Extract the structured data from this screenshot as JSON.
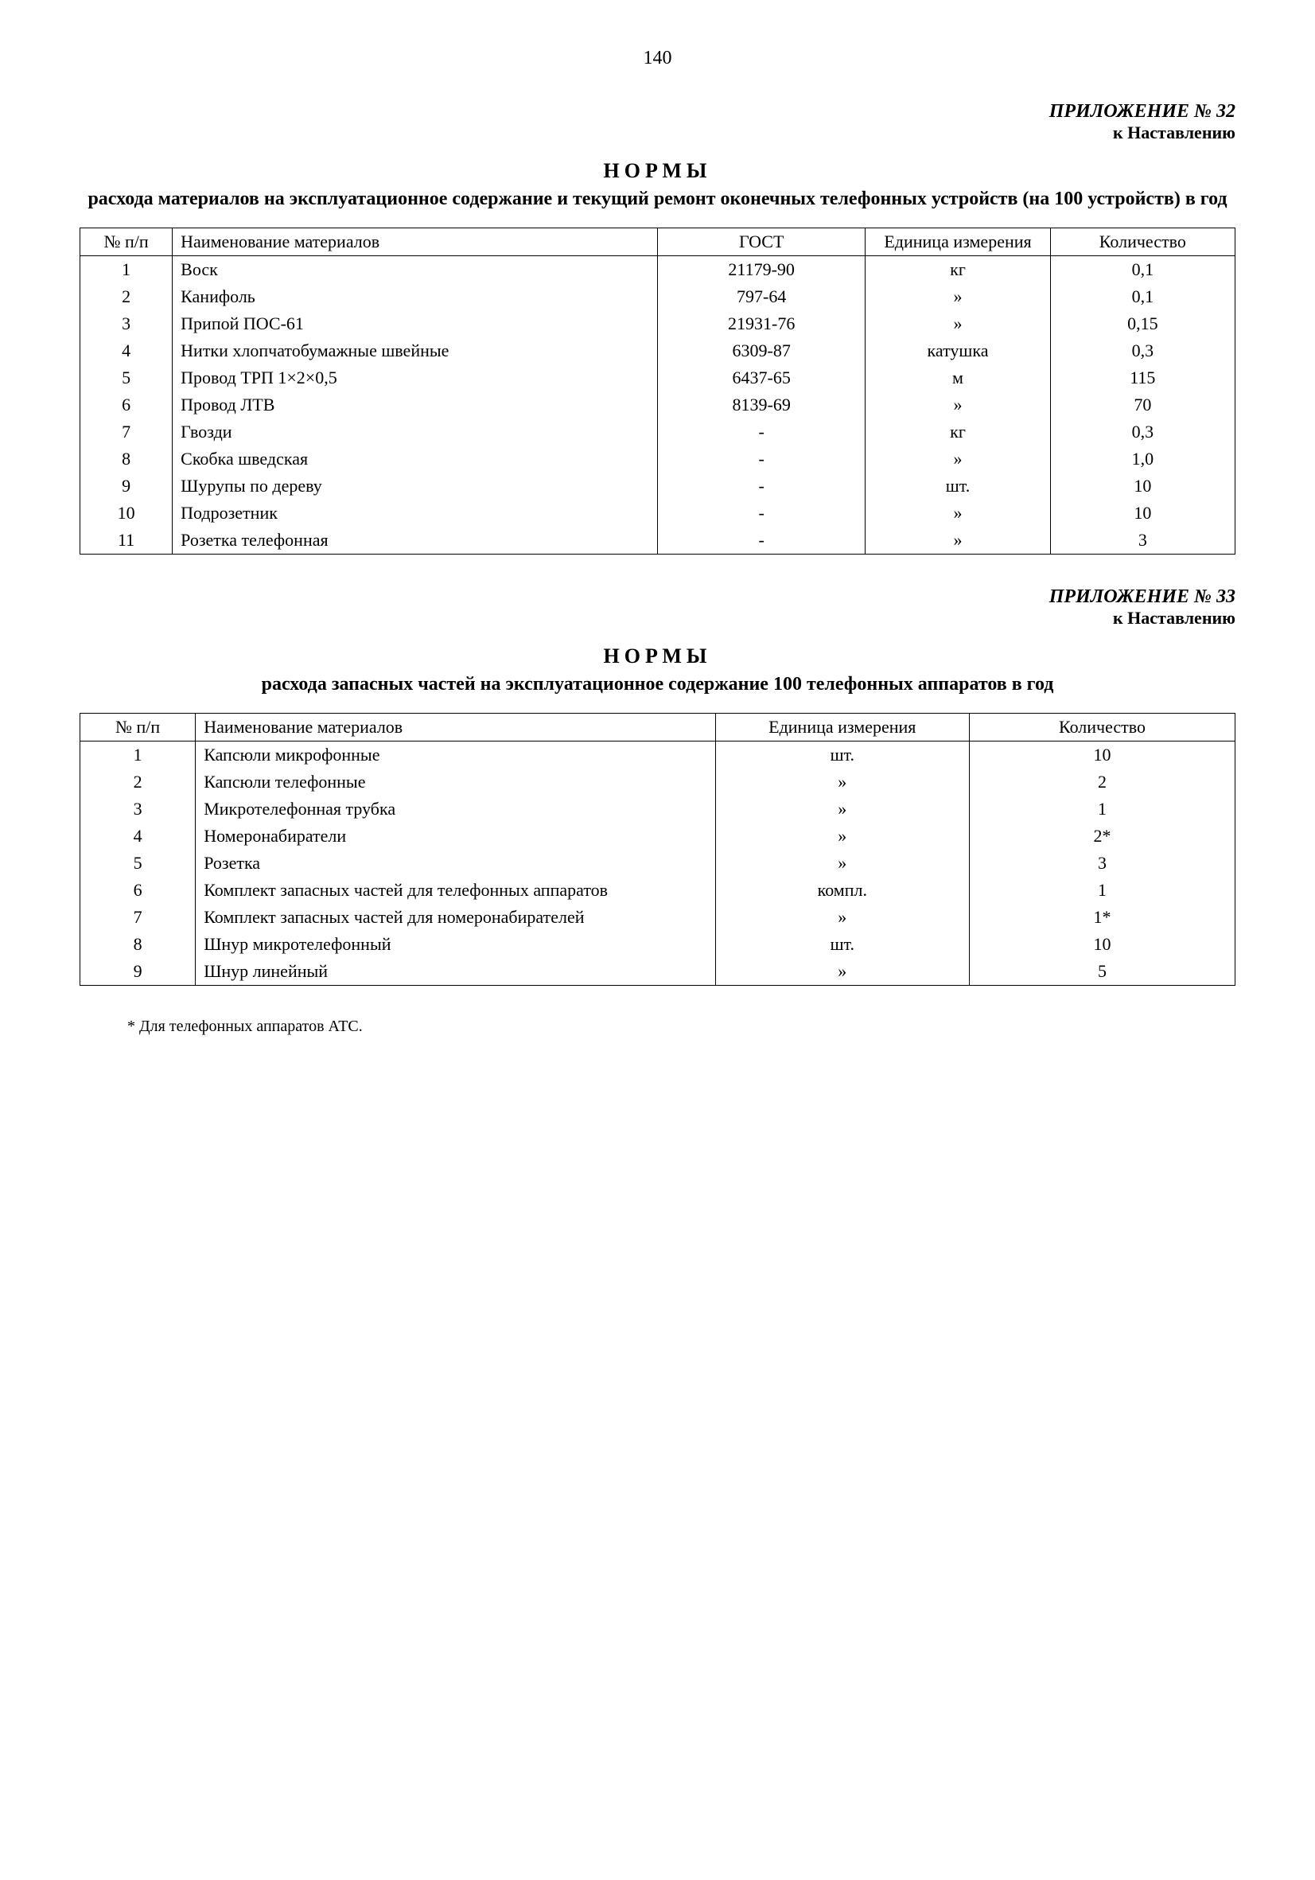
{
  "page_number": "140",
  "appendix32": {
    "title": "ПРИЛОЖЕНИЕ № 32",
    "subtitle": "к Наставлению",
    "heading": "НОРМЫ",
    "subheading": "расхода материалов на эксплуатационное содержание и текущий ремонт оконечных телефонных устройств (на 100 устройств) в год",
    "columns": [
      "№ п/п",
      "Наименование материалов",
      "ГОСТ",
      "Единица измерения",
      "Количество"
    ],
    "rows": [
      {
        "num": "1",
        "name": "Воск",
        "gost": "21179-90",
        "unit": "кг",
        "qty": "0,1"
      },
      {
        "num": "2",
        "name": "Канифоль",
        "gost": "797-64",
        "unit": "»",
        "qty": "0,1"
      },
      {
        "num": "3",
        "name": "Припой ПОС-61",
        "gost": "21931-76",
        "unit": "»",
        "qty": "0,15"
      },
      {
        "num": "4",
        "name": "Нитки хлопчатобумажные швейные",
        "gost": "6309-87",
        "unit": "катушка",
        "qty": "0,3"
      },
      {
        "num": "5",
        "name": "Провод ТРП 1×2×0,5",
        "gost": "6437-65",
        "unit": "м",
        "qty": "115"
      },
      {
        "num": "6",
        "name": "Провод ЛТВ",
        "gost": "8139-69",
        "unit": "»",
        "qty": "70"
      },
      {
        "num": "7",
        "name": "Гвозди",
        "gost": "-",
        "unit": "кг",
        "qty": "0,3"
      },
      {
        "num": "8",
        "name": "Скобка шведская",
        "gost": "-",
        "unit": "»",
        "qty": "1,0"
      },
      {
        "num": "9",
        "name": "Шурупы по дереву",
        "gost": "-",
        "unit": "шт.",
        "qty": "10"
      },
      {
        "num": "10",
        "name": "Подрозетник",
        "gost": "-",
        "unit": "»",
        "qty": "10"
      },
      {
        "num": "11",
        "name": "Розетка телефонная",
        "gost": "-",
        "unit": "»",
        "qty": "3"
      }
    ]
  },
  "appendix33": {
    "title": "ПРИЛОЖЕНИЕ № 33",
    "subtitle": "к Наставлению",
    "heading": "НОРМЫ",
    "subheading": "расхода запасных частей на эксплуатационное содержание 100 телефонных аппаратов в год",
    "columns": [
      "№ п/п",
      "Наименование материалов",
      "Единица измерения",
      "Количество"
    ],
    "rows": [
      {
        "num": "1",
        "name": "Капсюли микрофонные",
        "unit": "шт.",
        "qty": "10"
      },
      {
        "num": "2",
        "name": "Капсюли телефонные",
        "unit": "»",
        "qty": "2"
      },
      {
        "num": "3",
        "name": "Микротелефонная трубка",
        "unit": "»",
        "qty": "1"
      },
      {
        "num": "4",
        "name": "Номеронабиратели",
        "unit": "»",
        "qty": "2*"
      },
      {
        "num": "5",
        "name": "Розетка",
        "unit": "»",
        "qty": "3"
      },
      {
        "num": "6",
        "name": "Комплект запасных частей для телефонных аппаратов",
        "unit": "компл.",
        "qty": "1"
      },
      {
        "num": "7",
        "name": "Комплект запасных частей для номеронабирателей",
        "unit": "»",
        "qty": "1*"
      },
      {
        "num": "8",
        "name": "Шнур микротелефонный",
        "unit": "шт.",
        "qty": "10"
      },
      {
        "num": "9",
        "name": "Шнур линейный",
        "unit": "»",
        "qty": "5"
      }
    ],
    "footnote": "* Для телефонных аппаратов АТС."
  }
}
